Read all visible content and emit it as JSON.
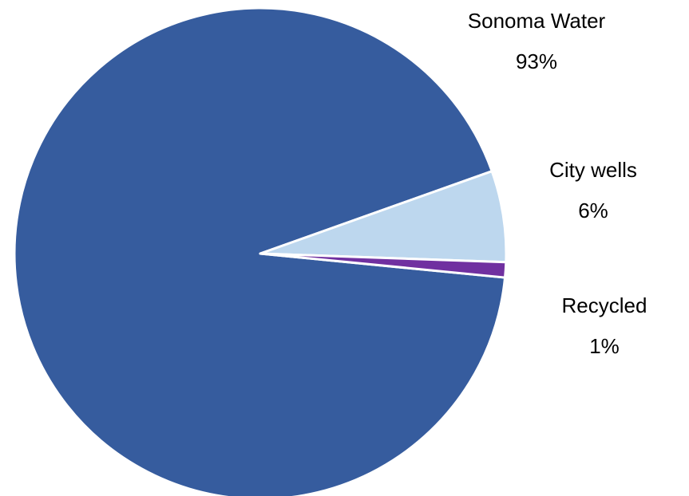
{
  "chart_data": {
    "type": "pie",
    "categories": [
      "Sonoma Water",
      "City wells",
      "Recycled"
    ],
    "values": [
      93,
      6,
      1
    ],
    "value_labels": [
      "93%",
      "6%",
      "1%"
    ],
    "colors": [
      "#365c9e",
      "#bdd7ee",
      "#7030a0"
    ]
  }
}
